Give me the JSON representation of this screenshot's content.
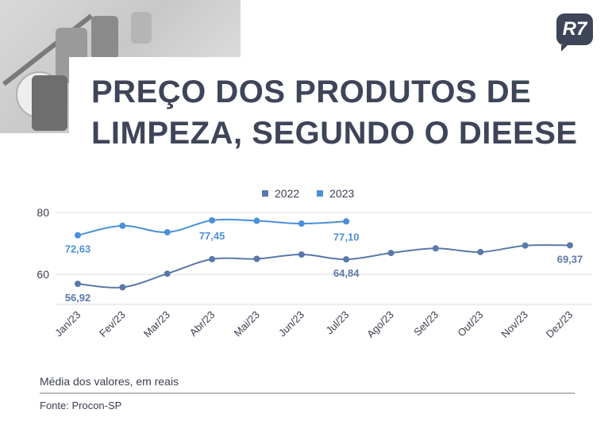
{
  "header": {
    "title_line1": "PREÇO DOS PRODUTOS DE",
    "title_line2": "LIMPEZA, SEGUNDO O DIEESE",
    "logo_text": "R7"
  },
  "chart_data": {
    "type": "line",
    "categories": [
      "Jan/23",
      "Fev/23",
      "Mar/23",
      "Abr/23",
      "Mai/23",
      "Jun/23",
      "Jul/23",
      "Ago/23",
      "Set/23",
      "Out/23",
      "Nov/23",
      "Dez/23"
    ],
    "series": [
      {
        "name": "2022",
        "color": "#5a78a8",
        "values": [
          56.92,
          55.8,
          60.2,
          64.9,
          65.0,
          66.4,
          64.84,
          66.9,
          68.4,
          67.2,
          69.3,
          69.37
        ]
      },
      {
        "name": "2023",
        "color": "#4a90d9",
        "values": [
          72.63,
          75.7,
          73.6,
          77.45,
          77.3,
          76.4,
          77.1,
          null,
          null,
          null,
          null,
          null
        ]
      }
    ],
    "yticks": [
      60,
      80
    ],
    "ylim": [
      50,
      82
    ],
    "data_labels": [
      {
        "series": 1,
        "index": 0,
        "text": "72,63"
      },
      {
        "series": 1,
        "index": 3,
        "text": "77,45"
      },
      {
        "series": 1,
        "index": 6,
        "text": "77,10"
      },
      {
        "series": 0,
        "index": 0,
        "text": "56,92"
      },
      {
        "series": 0,
        "index": 6,
        "text": "64,84"
      },
      {
        "series": 0,
        "index": 11,
        "text": "69,37"
      }
    ],
    "grid": true,
    "legend_position": "top-center"
  },
  "footer": {
    "note": "Média dos valores, em reais",
    "source": "Fonte: Procon-SP"
  },
  "colors": {
    "title": "#3e4558",
    "series_2022": "#5a78a8",
    "series_2023": "#4a90d9",
    "grid": "#d9dbe0"
  },
  "icons": {
    "logo": "r7-logo-icon"
  }
}
